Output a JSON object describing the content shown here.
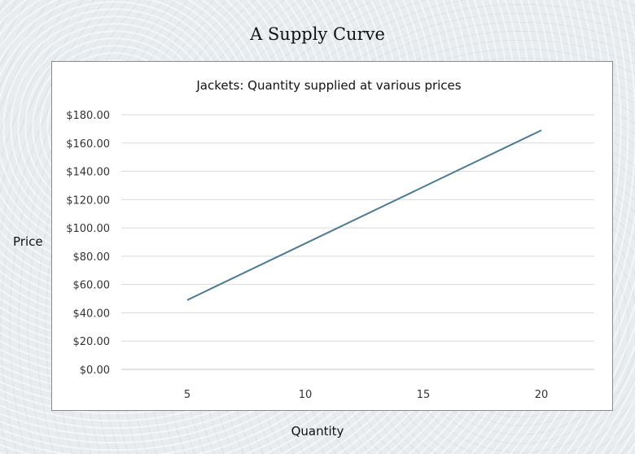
{
  "page_title": "A Supply Curve",
  "chart_data": {
    "type": "line",
    "title": "Jackets: Quantity supplied at various prices",
    "xlabel": "Quantity",
    "ylabel": "Price",
    "categories": [
      "5",
      "10",
      "15",
      "20"
    ],
    "x": [
      5,
      20
    ],
    "y": [
      49,
      169
    ],
    "x_ticks": [
      5,
      10,
      15,
      20
    ],
    "y_ticks": [
      "$0.00",
      "$20.00",
      "$40.00",
      "$60.00",
      "$80.00",
      "$100.00",
      "$120.00",
      "$140.00",
      "$160.00",
      "$180.00"
    ],
    "ylim": [
      0,
      180
    ],
    "grid": true,
    "line_color": "#4a7a94"
  }
}
